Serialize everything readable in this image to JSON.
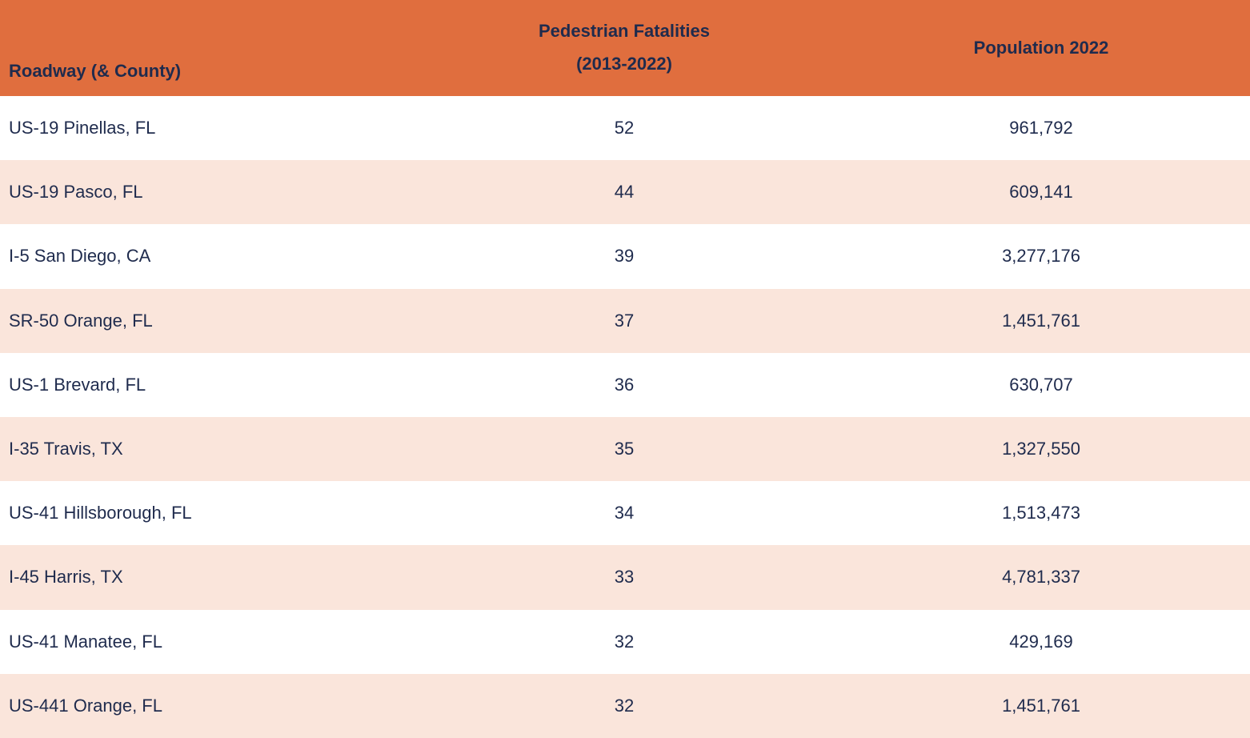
{
  "colors": {
    "header_bg": "#E06E3E",
    "row_bg": "#FFFFFF",
    "row_alt_bg": "#FAE5DB",
    "text": "#1F2B4D"
  },
  "table": {
    "headers": {
      "roadway": "Roadway (& County)",
      "fatalities_line1": "Pedestrian Fatalities",
      "fatalities_line2": "(2013-2022)",
      "population": "Population 2022"
    },
    "rows": [
      {
        "roadway": "US-19 Pinellas, FL",
        "fatalities": "52",
        "population": "961,792"
      },
      {
        "roadway": "US-19 Pasco, FL",
        "fatalities": "44",
        "population": "609,141"
      },
      {
        "roadway": "I-5 San Diego, CA",
        "fatalities": "39",
        "population": "3,277,176"
      },
      {
        "roadway": "SR-50 Orange, FL",
        "fatalities": "37",
        "population": "1,451,761"
      },
      {
        "roadway": "US-1 Brevard, FL",
        "fatalities": "36",
        "population": "630,707"
      },
      {
        "roadway": "I-35 Travis, TX",
        "fatalities": "35",
        "population": "1,327,550"
      },
      {
        "roadway": "US-41 Hillsborough, FL",
        "fatalities": "34",
        "population": "1,513,473"
      },
      {
        "roadway": "I-45 Harris, TX",
        "fatalities": "33",
        "population": "4,781,337"
      },
      {
        "roadway": "US-41 Manatee, FL",
        "fatalities": "32",
        "population": "429,169"
      },
      {
        "roadway": "US-441 Orange, FL",
        "fatalities": "32",
        "population": "1,451,761"
      }
    ]
  },
  "chart_data": {
    "type": "table",
    "title": "",
    "columns": [
      "Roadway (& County)",
      "Pedestrian Fatalities (2013-2022)",
      "Population 2022"
    ],
    "rows": [
      [
        "US-19 Pinellas, FL",
        52,
        961792
      ],
      [
        "US-19 Pasco, FL",
        44,
        609141
      ],
      [
        "I-5 San Diego, CA",
        39,
        3277176
      ],
      [
        "SR-50 Orange, FL",
        37,
        1451761
      ],
      [
        "US-1 Brevard, FL",
        36,
        630707
      ],
      [
        "I-35 Travis, TX",
        35,
        1327550
      ],
      [
        "US-41 Hillsborough, FL",
        34,
        1513473
      ],
      [
        "I-45 Harris, TX",
        33,
        4781337
      ],
      [
        "US-41 Manatee, FL",
        32,
        429169
      ],
      [
        "US-441 Orange, FL",
        32,
        1451761
      ]
    ],
    "layout": {
      "header_align": [
        "left",
        "center",
        "center"
      ],
      "body_align": [
        "left",
        "center",
        "center"
      ],
      "striped": true
    }
  }
}
